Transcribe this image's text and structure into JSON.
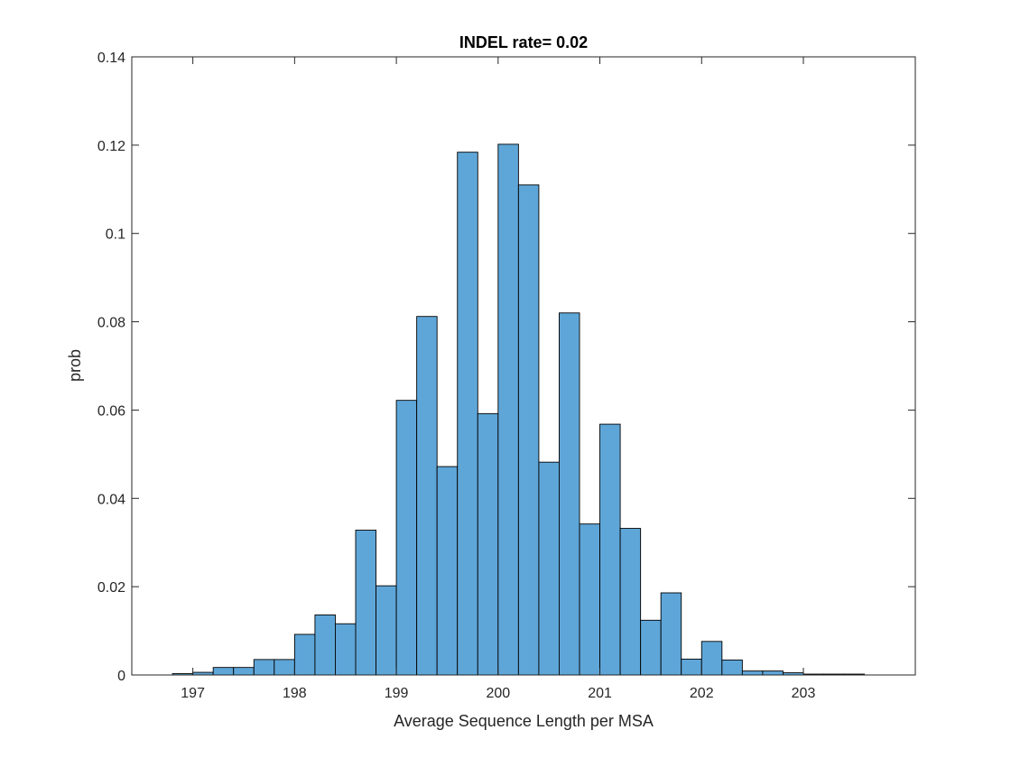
{
  "chart_data": {
    "type": "bar",
    "title": "INDEL rate= 0.02",
    "xlabel": "Average Sequence Length per MSA",
    "ylabel": "prob",
    "xlim": [
      196.4,
      204.1
    ],
    "ylim": [
      0,
      0.14
    ],
    "xticks": [
      197,
      198,
      199,
      200,
      201,
      202,
      203
    ],
    "xtick_labels": [
      "197",
      "198",
      "199",
      "200",
      "201",
      "202",
      "203"
    ],
    "yticks": [
      0,
      0.02,
      0.04,
      0.06,
      0.08,
      0.1,
      0.12,
      0.14
    ],
    "ytick_labels": [
      "0",
      "0.02",
      "0.04",
      "0.06",
      "0.08",
      "0.1",
      "0.12",
      "0.14"
    ],
    "grid": false,
    "bar_color": "#5fa6d8",
    "bar_edge_color": "#000000",
    "series": [
      {
        "bin_edges": [
          196.8,
          197.0,
          197.2,
          197.4,
          197.6,
          197.8,
          198.0,
          198.2,
          198.4,
          198.6,
          198.8,
          199.0,
          199.2,
          199.4,
          199.6,
          199.8,
          200.0,
          200.2,
          200.4,
          200.6,
          200.8,
          201.0,
          201.2,
          201.4,
          201.6,
          201.8,
          202.0,
          202.2,
          202.4,
          202.6,
          202.8,
          203.0,
          203.2,
          203.4,
          203.6
        ],
        "values": [
          0.0003,
          0.0006,
          0.0017,
          0.0017,
          0.0035,
          0.0035,
          0.0092,
          0.0136,
          0.0116,
          0.0328,
          0.0202,
          0.0622,
          0.0812,
          0.0472,
          0.1184,
          0.0592,
          0.1202,
          0.111,
          0.0482,
          0.082,
          0.0342,
          0.0568,
          0.0332,
          0.0124,
          0.0186,
          0.0036,
          0.0076,
          0.0034,
          0.0009,
          0.0009,
          0.0005,
          0.0002,
          0.0002,
          0.0002
        ]
      }
    ]
  }
}
